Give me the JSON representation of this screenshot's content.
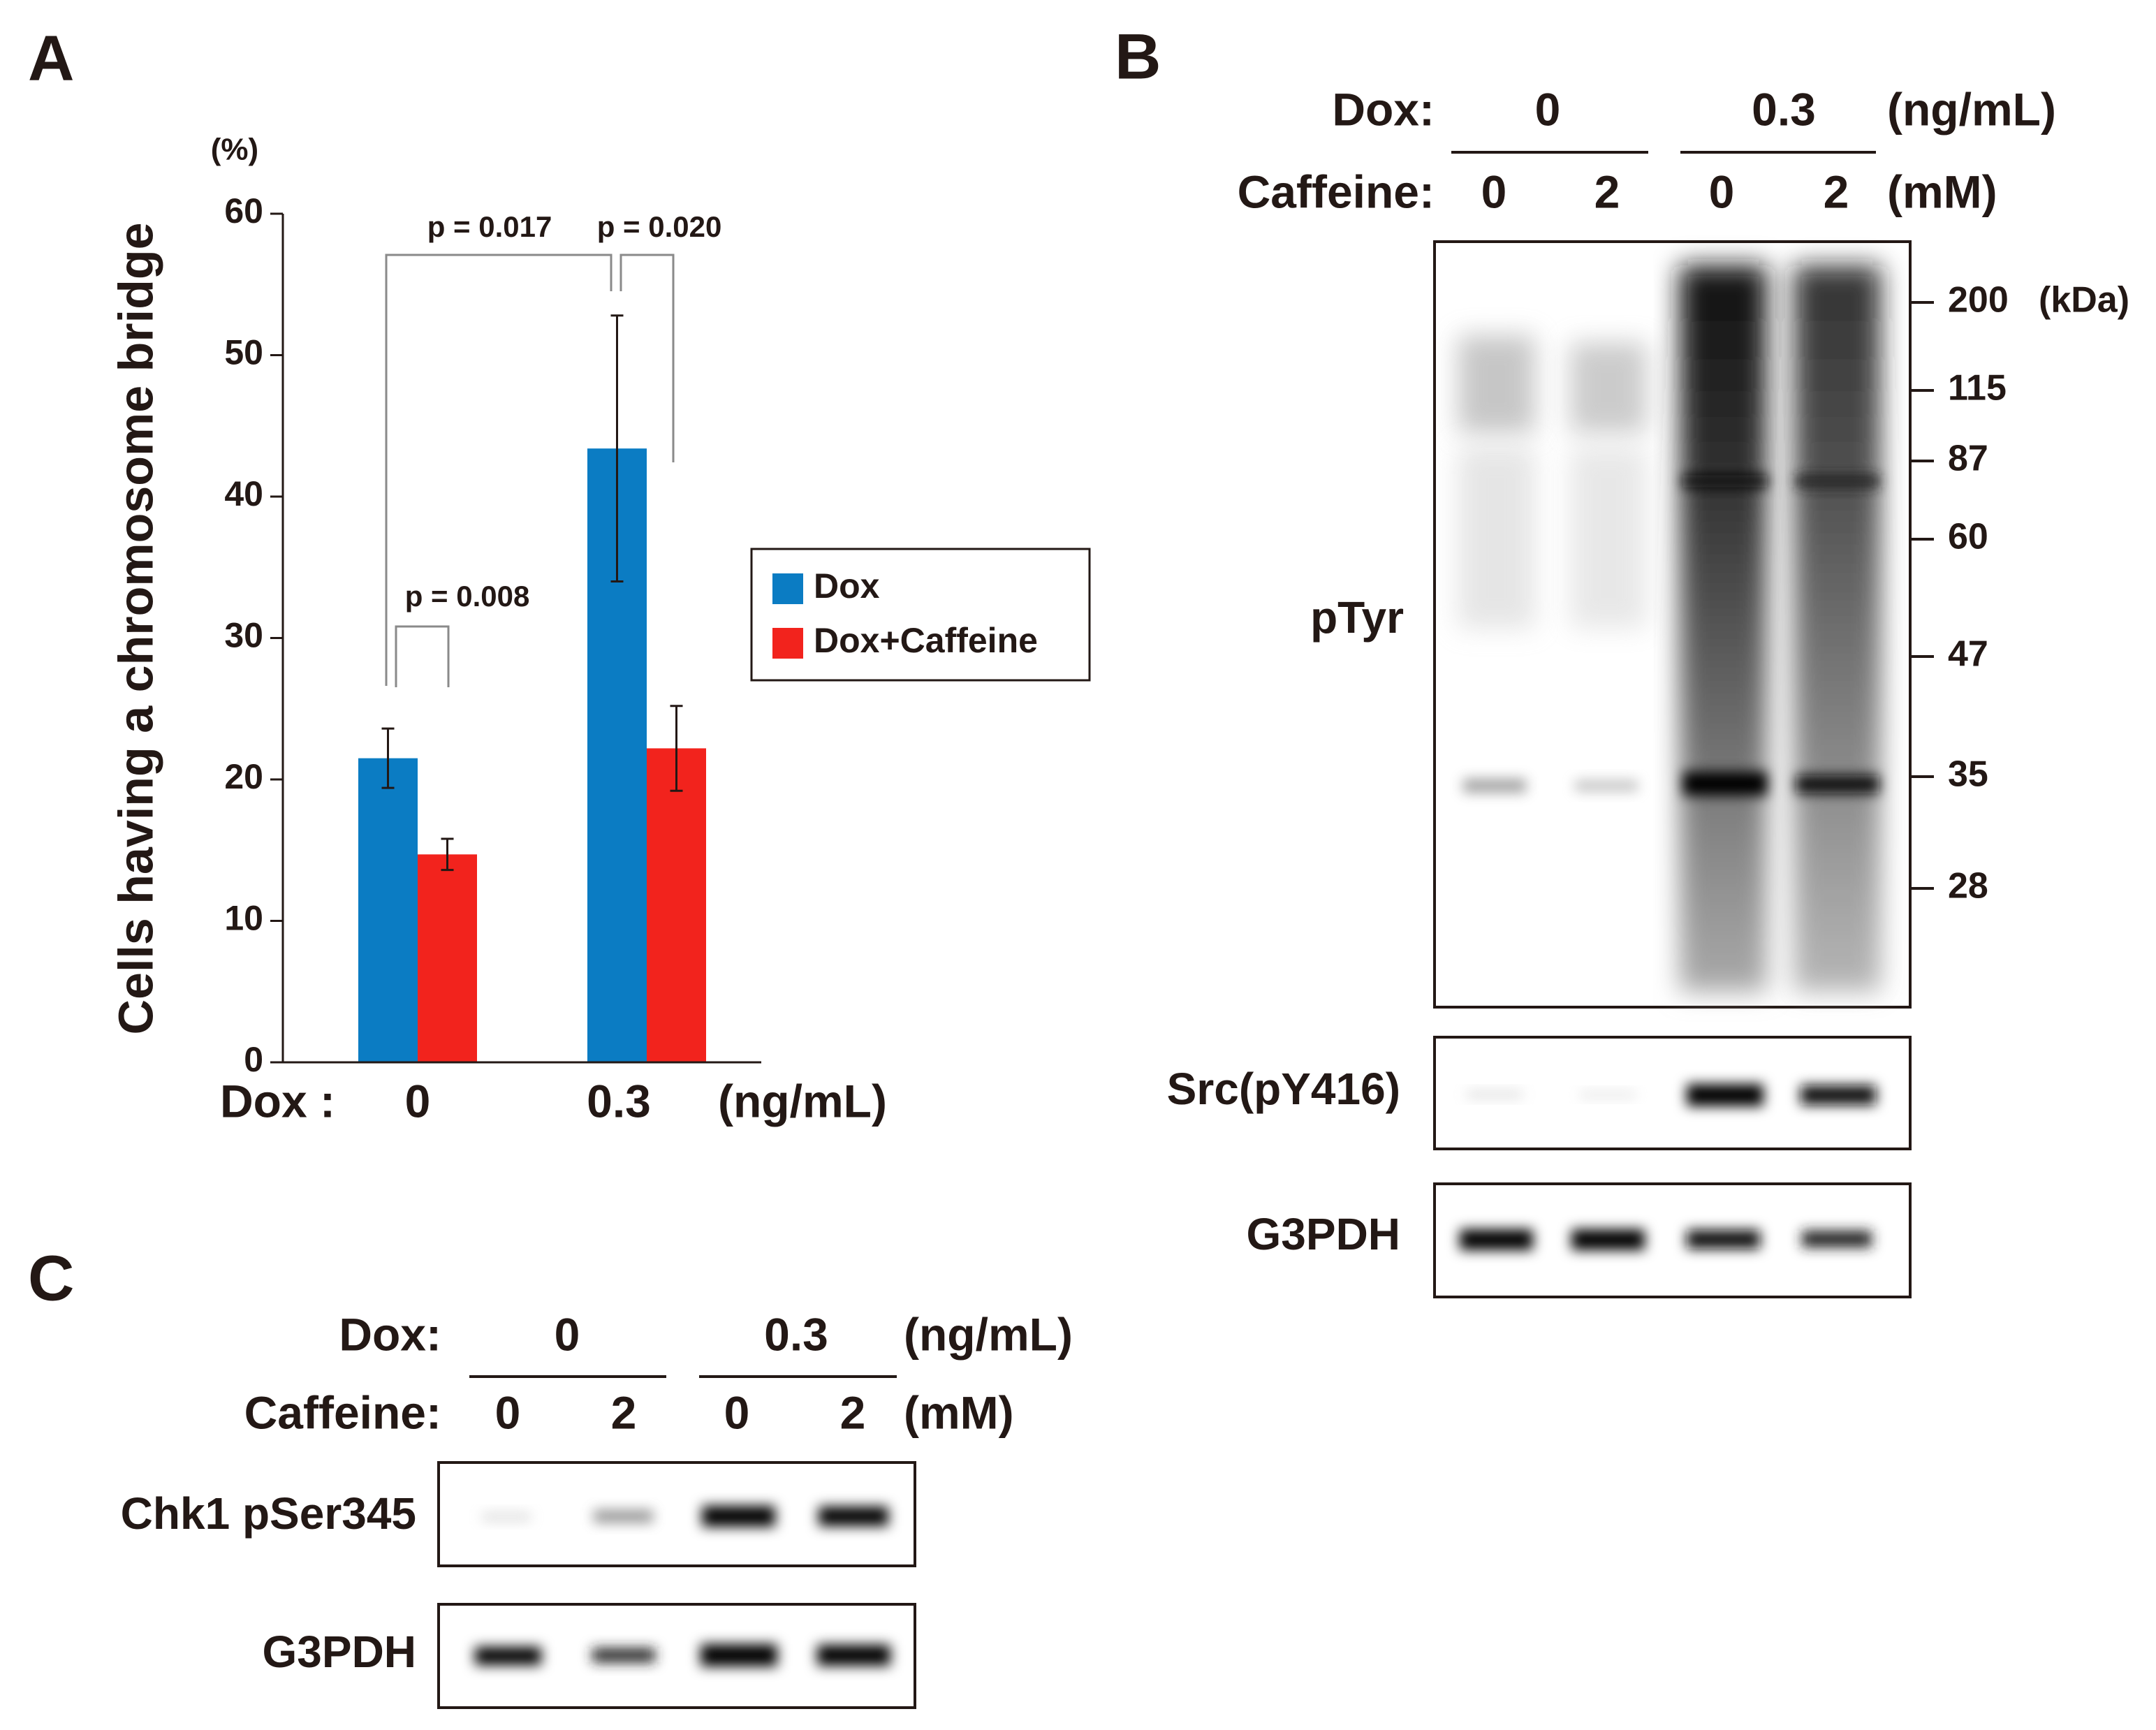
{
  "chart_data": {
    "type": "bar",
    "label": "A",
    "y_label": "Cells having a chromosome bridge",
    "y_unit": "(%)",
    "x_label": "Dox :",
    "x_unit": "(ng/mL)",
    "categories": [
      "0",
      "0.3"
    ],
    "series": [
      {
        "name": "Dox",
        "color": "#0b7cc3",
        "values": [
          21.5,
          43.4
        ],
        "errors": [
          2.1,
          9.4
        ]
      },
      {
        "name": "Dox+Caffeine",
        "color": "#f2231d",
        "values": [
          14.7,
          22.2
        ],
        "errors": [
          1.1,
          3.0
        ]
      }
    ],
    "ylim": [
      0,
      60
    ],
    "yticks": [
      0,
      10,
      20,
      30,
      40,
      50,
      60
    ],
    "legend": "right",
    "annotations": [
      "p = 0.017",
      "p = 0.020",
      "p = 0.008"
    ]
  },
  "panel_b": {
    "label": "B",
    "dox_label": "Dox:",
    "dox_levels": [
      "0",
      "0.3"
    ],
    "dox_unit": "(ng/mL)",
    "caffeine_label": "Caffeine:",
    "caffeine_levels": [
      "0",
      "2",
      "0",
      "2"
    ],
    "caffeine_unit": "(mM)",
    "blots": [
      "pTyr",
      "Src(pY416)",
      "G3PDH"
    ],
    "markers": [
      "200",
      "115",
      "87",
      "60",
      "47",
      "35",
      "28"
    ],
    "marker_unit": "(kDa)"
  },
  "panel_c": {
    "label": "C",
    "dox_label": "Dox:",
    "dox_levels": [
      "0",
      "0.3"
    ],
    "dox_unit": "(ng/mL)",
    "caffeine_label": "Caffeine:",
    "caffeine_levels": [
      "0",
      "2",
      "0",
      "2"
    ],
    "caffeine_unit": "(mM)",
    "blots": [
      "Chk1 pSer345",
      "G3PDH"
    ]
  }
}
